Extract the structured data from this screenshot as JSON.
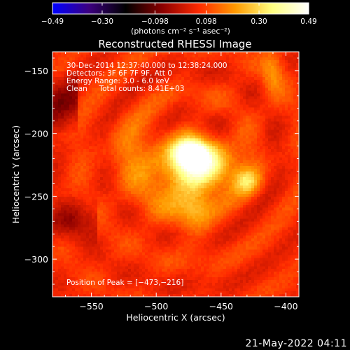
{
  "chart_data": {
    "type": "heatmap",
    "title": "Reconstructed RHESSI Image",
    "xlabel": "Heliocentric X (arcsec)",
    "ylabel": "Heliocentric Y (arcsec)",
    "xlim": [
      -580,
      -390
    ],
    "ylim": [
      -330,
      -135
    ],
    "x_ticks": [
      -550,
      -500,
      -450,
      -400
    ],
    "y_ticks": [
      -150,
      -200,
      -250,
      -300
    ],
    "x_tick_labels": [
      "−550",
      "−500",
      "−450",
      "−400"
    ],
    "y_tick_labels": [
      "−150",
      "−200",
      "−250",
      "−300"
    ],
    "colorbar": {
      "min": -0.49,
      "max": 0.49,
      "ticks": [
        -0.49,
        -0.3,
        -0.098,
        0.098,
        0.3,
        0.49
      ],
      "tick_labels": [
        "−0.49",
        "−0.30",
        "−0.098",
        "0.098",
        "0.30",
        "0.49"
      ],
      "unit_label": "(photons cm⁻² s⁻¹ asec⁻²)",
      "colormap": [
        "#0000ff",
        "#3c007f",
        "#000000",
        "#8b0000",
        "#ff2a00",
        "#ff9a00",
        "#ffff80",
        "#ffffff"
      ]
    },
    "annotations": [
      "30-Dec-2014 12:37:40.000 to 12:38:24.000",
      "Detectors: 3F 6F 7F 9F, Att 0",
      "Energy Range: 3.0 - 6.0 keV",
      "Clean     Total counts: 8.41E+03"
    ],
    "peak_label": "Position of Peak = [−473,−216]",
    "peak": {
      "x": -473,
      "y": -216
    },
    "sources": [
      {
        "x": -473,
        "y": -216,
        "sx": 8,
        "sy": 7,
        "amp": 0.49
      },
      {
        "x": -460,
        "y": -226,
        "sx": 17,
        "sy": 13,
        "amp": 0.24
      },
      {
        "x": -480,
        "y": -238,
        "sx": 20,
        "sy": 22,
        "amp": 0.16
      },
      {
        "x": -430,
        "y": -238,
        "sx": 7,
        "sy": 7,
        "amp": 0.18
      },
      {
        "x": -470,
        "y": -262,
        "sx": 8,
        "sy": 14,
        "amp": 0.08
      },
      {
        "x": -515,
        "y": -215,
        "sx": 16,
        "sy": 20,
        "amp": 0.08
      },
      {
        "x": -410,
        "y": -152,
        "sx": 6,
        "sy": 14,
        "amp": 0.12
      }
    ],
    "background_level": 0.07
  },
  "footer": {
    "date": "21-May-2022 04:11"
  }
}
